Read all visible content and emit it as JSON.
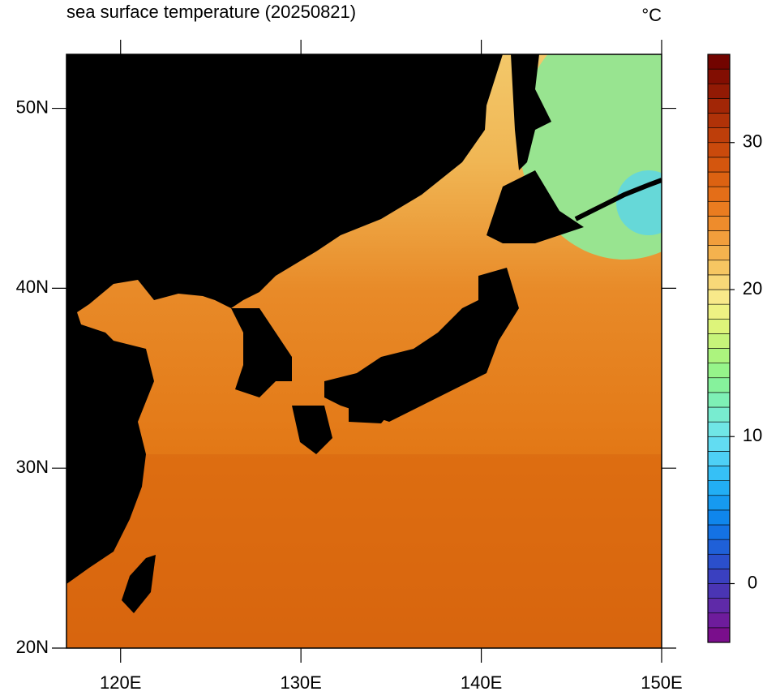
{
  "chart_data": {
    "type": "map",
    "title": "sea surface temperature (20250821)",
    "unit": "°C",
    "xlim": [
      117,
      150
    ],
    "ylim": [
      20,
      53
    ],
    "xticks": [
      {
        "value": 120,
        "label": "120E"
      },
      {
        "value": 130,
        "label": "130E"
      },
      {
        "value": 140,
        "label": "140E"
      },
      {
        "value": 150,
        "label": "150E"
      }
    ],
    "yticks": [
      {
        "value": 20,
        "label": "20N"
      },
      {
        "value": 30,
        "label": "30N"
      },
      {
        "value": 40,
        "label": "40N"
      },
      {
        "value": 50,
        "label": "50N"
      }
    ],
    "colorbar": {
      "lim": [
        -4,
        36
      ],
      "ticks": [
        0,
        10,
        20,
        30
      ],
      "colors": [
        "#7a0e8c",
        "#6e1c9c",
        "#5f2aa8",
        "#4a35b4",
        "#3a40c0",
        "#2b4fcc",
        "#1f60d8",
        "#1472e4",
        "#0f86ec",
        "#169af0",
        "#22aef4",
        "#36c0f6",
        "#4ed0f6",
        "#62dcf2",
        "#70e6e6",
        "#78ecd0",
        "#7ef0b6",
        "#86f29c",
        "#96f48a",
        "#acf47e",
        "#c6f47a",
        "#ddf47a",
        "#eef283",
        "#f8e98a",
        "#f8d878",
        "#f6c662",
        "#f4b24e",
        "#f29e3c",
        "#ee8c2c",
        "#ea7c20",
        "#e46e18",
        "#dc6212",
        "#d4560e",
        "#ca4a0c",
        "#be3e0a",
        "#b03208",
        "#a22606",
        "#921a04",
        "#820e02",
        "#720400"
      ]
    }
  }
}
